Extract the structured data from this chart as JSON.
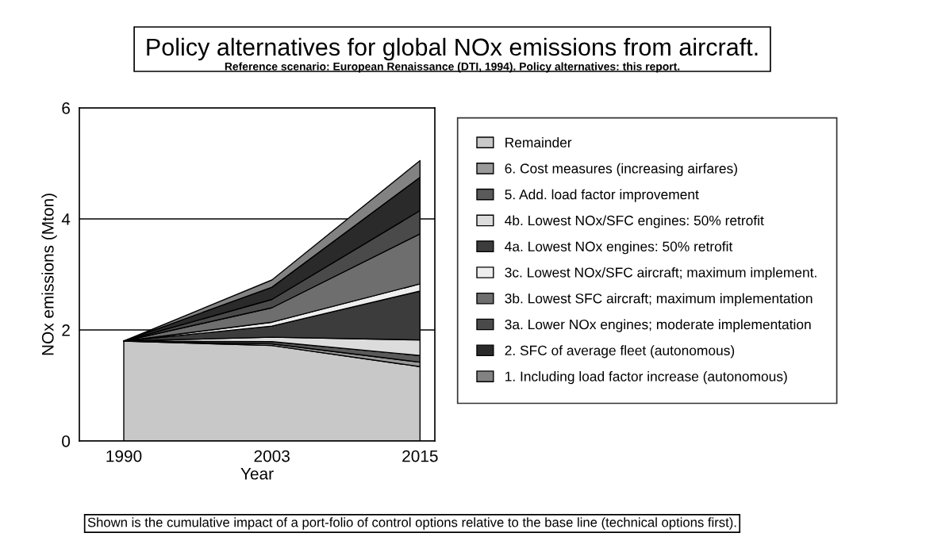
{
  "chart_data": {
    "type": "area",
    "stacked": true,
    "title": "Policy alternatives for global NOx emissions from aircraft.",
    "subtitle": "Reference scenario: European Renaissance (DTI, 1994). Policy alternatives: this report.",
    "xlabel": "Year",
    "ylabel": "NOx emissions (Mton)",
    "categories": [
      "1990",
      "2003",
      "2015"
    ],
    "ylim": [
      0,
      6
    ],
    "yticks": [
      0,
      2,
      4,
      6
    ],
    "grid": "y",
    "legend": "right",
    "series": [
      {
        "name": "Remainder",
        "color": "#c8c8c8",
        "values": [
          1.8,
          1.72,
          1.34
        ]
      },
      {
        "name": "6. Cost measures (increasing airfares)",
        "color": "#9a9a9a",
        "values": [
          0,
          0.03,
          0.08
        ]
      },
      {
        "name": "5. Add. load factor improvement",
        "color": "#5a5a5a",
        "values": [
          0,
          0.04,
          0.12
        ]
      },
      {
        "name": "4b. Lowest NOx/SFC engines: 50% retrofit",
        "color": "#dcdcdc",
        "values": [
          0,
          0.08,
          0.28
        ]
      },
      {
        "name": "4a. Lowest NOx engines: 50% retrofit",
        "color": "#3c3c3c",
        "values": [
          0,
          0.2,
          0.88
        ]
      },
      {
        "name": "3c. Lowest NOx/SFC aircraft; maximum implement.",
        "color": "#eeeeee",
        "values": [
          0,
          0.07,
          0.13
        ]
      },
      {
        "name": "3b. Lowest SFC aircraft; maximum implementation",
        "color": "#6e6e6e",
        "values": [
          0,
          0.26,
          0.9
        ]
      },
      {
        "name": "3a. Lower NOx engines; moderate implementation",
        "color": "#4a4a4a",
        "values": [
          0,
          0.15,
          0.42
        ]
      },
      {
        "name": "2. SFC of average fleet (autonomous)",
        "color": "#2a2a2a",
        "values": [
          0,
          0.22,
          0.6
        ]
      },
      {
        "name": "1. Including load factor increase (autonomous)",
        "color": "#828282",
        "values": [
          0,
          0.13,
          0.3
        ]
      }
    ],
    "annotations": [
      "Shown is the cumulative impact of a port-folio of control options relative to the base line (technical options first)."
    ]
  }
}
